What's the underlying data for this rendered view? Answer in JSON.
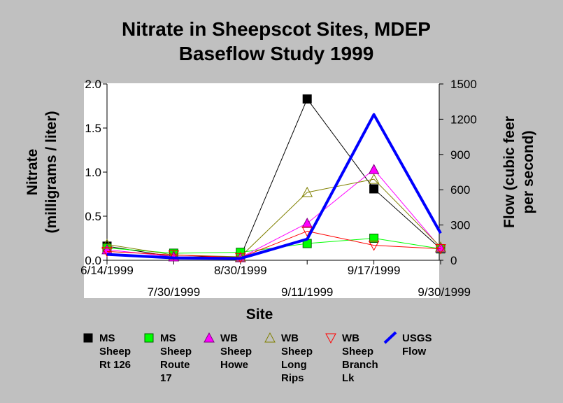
{
  "chart_data": {
    "type": "line",
    "title_lines": [
      "Nitrate in Sheepscot Sites, MDEP",
      "Baseflow Study 1999"
    ],
    "xlabel": "Site",
    "ylabel_left_lines": [
      "Nitrate",
      "(milligrams / liter)"
    ],
    "ylabel_right_lines": [
      "Flow (cubic feer",
      "per second)"
    ],
    "categories": [
      "6/14/1999",
      "7/30/1999",
      "8/30/1999",
      "9/11/1999",
      "9/17/1999",
      "9/30/1999"
    ],
    "ylim_left": [
      0,
      2.0
    ],
    "yticks_left": [
      "0.0",
      "0.5",
      "1.0",
      "1.5",
      "2.0"
    ],
    "ylim_right": [
      0,
      1500
    ],
    "yticks_right": [
      "0",
      "300",
      "600",
      "900",
      "1200",
      "1500"
    ],
    "grid": false,
    "legend_position": "bottom",
    "series": [
      {
        "name": "MS Sheep Rt 126",
        "legend_lines": [
          "MS",
          "Sheep",
          "Rt 126"
        ],
        "axis": "left",
        "marker": "square",
        "color": "#000000",
        "fill": "#000000",
        "line_color": "#000000",
        "line_width": 1,
        "values": [
          0.16,
          0.04,
          0.04,
          1.83,
          0.81,
          0.13
        ]
      },
      {
        "name": "MS Sheep Route 17",
        "legend_lines": [
          "MS",
          "Sheep",
          "Route",
          "17"
        ],
        "axis": "left",
        "marker": "square",
        "color": "#006400",
        "fill": "#00ff00",
        "line_color": "#00ff00",
        "line_width": 1,
        "values": [
          0.14,
          0.08,
          0.09,
          0.19,
          0.25,
          0.13
        ]
      },
      {
        "name": "WB Sheep Howe",
        "legend_lines": [
          "WB",
          "Sheep",
          "Howe"
        ],
        "axis": "left",
        "marker": "triangle-up",
        "color": "#800080",
        "fill": "#ff00ff",
        "line_color": "#ff00ff",
        "line_width": 1,
        "values": [
          0.12,
          0.04,
          0.03,
          0.42,
          1.03,
          0.14
        ]
      },
      {
        "name": "WB Sheep Long Rips",
        "legend_lines": [
          "WB",
          "Sheep",
          "Long",
          "Rips"
        ],
        "axis": "left",
        "marker": "triangle-up-open",
        "color": "#808000",
        "fill": "none",
        "line_color": "#808000",
        "line_width": 1,
        "values": [
          0.18,
          0.06,
          0.04,
          0.77,
          0.92,
          0.15
        ]
      },
      {
        "name": "WB Sheep Branch Lk",
        "legend_lines": [
          "WB",
          "Sheep",
          "Branch",
          "Lk"
        ],
        "axis": "left",
        "marker": "triangle-down-open",
        "color": "#ff0000",
        "fill": "none",
        "line_color": "#ff0000",
        "line_width": 1,
        "values": [
          0.1,
          0.06,
          0.03,
          0.33,
          0.17,
          0.13
        ]
      },
      {
        "name": "USGS Flow",
        "legend_lines": [
          "USGS",
          "Flow"
        ],
        "axis": "right",
        "marker": "none",
        "color": "#0000ff",
        "fill": "none",
        "line_color": "#0000ff",
        "line_width": 4,
        "values": [
          50,
          20,
          15,
          180,
          1240,
          230
        ]
      }
    ]
  }
}
